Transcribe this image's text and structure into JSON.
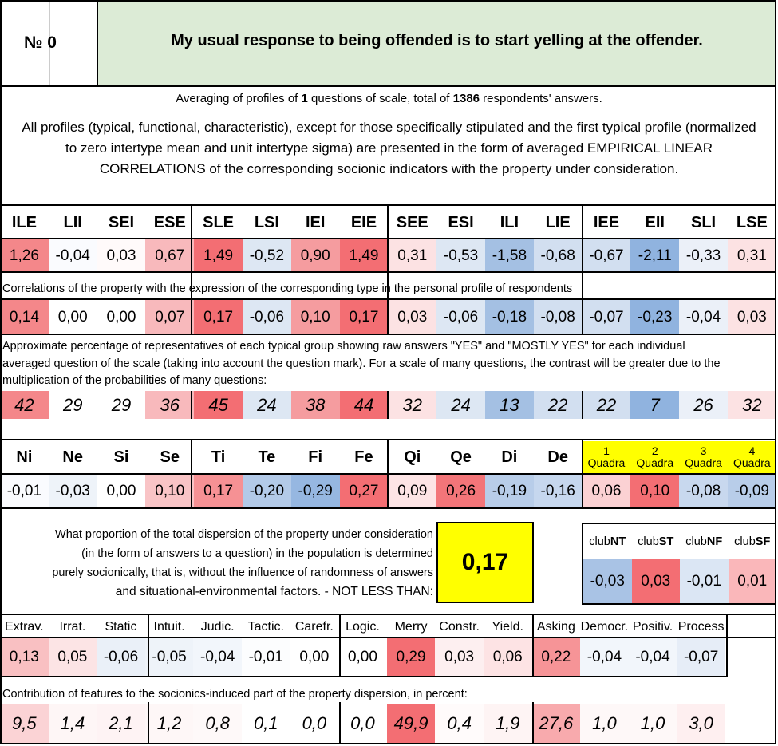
{
  "header": {
    "no_label": "№",
    "no_value": "0",
    "question": "My usual response to being offended is to start yelling at the offender."
  },
  "averaging": {
    "prefix": "Averaging of profiles of ",
    "n_questions": "1",
    "middle": " questions of scale, total of ",
    "n_answers": "1386",
    "suffix": " respondents' answers."
  },
  "intro": "All profiles (typical, functional, characteristic), except for those specifically stipulated and the first typical profile (normalized to zero intertype mean and unit intertype sigma) are presented in the form of averaged EMPIRICAL LINEAR CORRELATIONS of the corresponding socionic indicators with the property under consideration.",
  "types": [
    "ILE",
    "LII",
    "SEI",
    "ESE",
    "SLE",
    "LSI",
    "IEI",
    "EIE",
    "SEE",
    "ESI",
    "ILI",
    "LIE",
    "IEE",
    "EII",
    "SLI",
    "LSE"
  ],
  "typical_profile": [
    "1,26",
    "-0,04",
    "0,03",
    "0,67",
    "1,49",
    "-0,52",
    "0,90",
    "1,49",
    "0,31",
    "-0,53",
    "-1,58",
    "-0,68",
    "-0,67",
    "-2,11",
    "-0,33",
    "0,31"
  ],
  "typical_colors": [
    "#f4878a",
    "#fafbfe",
    "#fffafa",
    "#f8b9bc",
    "#f36e73",
    "#dde7f3",
    "#f59c9f",
    "#f36e73",
    "#fce2e3",
    "#dde7f3",
    "#a4c0e3",
    "#d2dff0",
    "#d2dff0",
    "#90b3df",
    "#ebf0f8",
    "#fce2e3"
  ],
  "corr_note": "Correlations of the property with the expression of the corresponding type in the personal profile of respondents",
  "corr_values": [
    "0,14",
    "0,00",
    "0,00",
    "0,07",
    "0,17",
    "-0,06",
    "0,10",
    "0,17",
    "0,03",
    "-0,06",
    "-0,18",
    "-0,08",
    "-0,07",
    "-0,23",
    "-0,04",
    "0,03"
  ],
  "corr_colors": [
    "#f4878a",
    "#ffffff",
    "#ffffff",
    "#f8b9bc",
    "#f36e73",
    "#dde7f3",
    "#f59c9f",
    "#f36e73",
    "#fce2e3",
    "#dde7f3",
    "#a4c0e3",
    "#d2dff0",
    "#d2dff0",
    "#90b3df",
    "#ebf0f8",
    "#fce2e3"
  ],
  "pct_note_1": "Approximate percentage of representatives of each typical group showing raw answers \"YES\" and \"MOSTLY YES\" for each individual",
  "pct_note_2": "averaged question of the scale (taking into account the question mark). For a scale of many questions, the contrast will be greater due to the",
  "pct_note_3": "multiplication of the probabilities of many questions:",
  "pct_values": [
    "42",
    "29",
    "29",
    "36",
    "45",
    "24",
    "38",
    "44",
    "32",
    "24",
    "13",
    "22",
    "22",
    "7",
    "26",
    "32"
  ],
  "pct_colors": [
    "#f4878a",
    "#ffffff",
    "#ffffff",
    "#f8b9bc",
    "#f36e73",
    "#dde7f3",
    "#f59c9f",
    "#f36e73",
    "#fce2e3",
    "#dde7f3",
    "#a4c0e3",
    "#d2dff0",
    "#d2dff0",
    "#90b3df",
    "#ebf0f8",
    "#fce2e3"
  ],
  "functions": [
    "Ni",
    "Ne",
    "Si",
    "Se",
    "Ti",
    "Te",
    "Fi",
    "Fe",
    "Qi",
    "Qe",
    "Di",
    "De"
  ],
  "func_values": [
    "-0,01",
    "-0,03",
    "0,00",
    "0,10",
    "0,17",
    "-0,20",
    "-0,29",
    "0,27",
    "0,09",
    "0,26",
    "-0,19",
    "-0,16"
  ],
  "func_colors": [
    "#fafbfe",
    "#eef3f9",
    "#ffffff",
    "#f9c4c6",
    "#f69194",
    "#b3cae8",
    "#96b7e1",
    "#f36e73",
    "#fde4e5",
    "#f37579",
    "#b8cde9",
    "#c6d7ee"
  ],
  "quadras": [
    {
      "num": "1",
      "label": "Quadra"
    },
    {
      "num": "2",
      "label": "Quadra"
    },
    {
      "num": "3",
      "label": "Quadra"
    },
    {
      "num": "4",
      "label": "Quadra"
    }
  ],
  "quadra_values": [
    "0,06",
    "0,10",
    "-0,08",
    "-0,09"
  ],
  "quadra_colors": [
    "#fbd1d3",
    "#f36e73",
    "#c8d8ee",
    "#b8cde9"
  ],
  "proportion": {
    "line1": "What proportion of the total dispersion of the property under consideration",
    "line2": "(in the form of answers to a question) in the population is determined",
    "line3": "purely socionically, that is, without the influence of randomness of answers",
    "line4": "and situational-environmental factors. - NOT LESS THAN:",
    "value": "0,17"
  },
  "clubs": [
    {
      "prefix": "club",
      "bold": "NT"
    },
    {
      "prefix": "club",
      "bold": "ST"
    },
    {
      "prefix": "club",
      "bold": "NF"
    },
    {
      "prefix": "club",
      "bold": "SF"
    }
  ],
  "club_values": [
    "-0,03",
    "0,03",
    "-0,01",
    "0,01"
  ],
  "club_colors": [
    "#a9c3e5",
    "#f36e73",
    "#dbe6f4",
    "#fab7ba"
  ],
  "features": [
    "Extrav.",
    "Irrat.",
    "Static",
    "Intuit.",
    "Judic.",
    "Tactic.",
    "Carefr.",
    "Logic.",
    "Merry",
    "Constr.",
    "Yield.",
    "Asking",
    "Democr.",
    "Positiv.",
    "Process"
  ],
  "feature_values": [
    "0,13",
    "0,05",
    "-0,06",
    "-0,05",
    "-0,04",
    "-0,01",
    "0,00",
    "0,00",
    "0,29",
    "0,03",
    "0,06",
    "0,22",
    "-0,04",
    "-0,04",
    "-0,07"
  ],
  "feature_colors": [
    "#f9c0c2",
    "#fce4e5",
    "#eaf0f8",
    "#eef3f9",
    "#f2f6fb",
    "#fcfdfe",
    "#ffffff",
    "#ffffff",
    "#f36e73",
    "#fdeff0",
    "#fde3e4",
    "#f69497",
    "#f2f6fb",
    "#f2f6fb",
    "#e6edf7"
  ],
  "contrib_note": "Contribution of features to the sociоnics-induced part of the property dispersion, in percent:",
  "contrib_values": [
    "9,5",
    "1,4",
    "2,1",
    "1,2",
    "0,8",
    "0,1",
    "0,0",
    "0,0",
    "49,9",
    "0,4",
    "1,9",
    "27,6",
    "1,0",
    "1,0",
    "3,0"
  ],
  "contrib_colors": [
    "#fbd3d5",
    "#fef6f6",
    "#fef3f4",
    "#fef7f7",
    "#fef9f9",
    "#ffffff",
    "#ffffff",
    "#ffffff",
    "#f36e73",
    "#fffbfb",
    "#fef4f4",
    "#f8aaad",
    "#fef8f8",
    "#fef8f8",
    "#feeff0"
  ]
}
